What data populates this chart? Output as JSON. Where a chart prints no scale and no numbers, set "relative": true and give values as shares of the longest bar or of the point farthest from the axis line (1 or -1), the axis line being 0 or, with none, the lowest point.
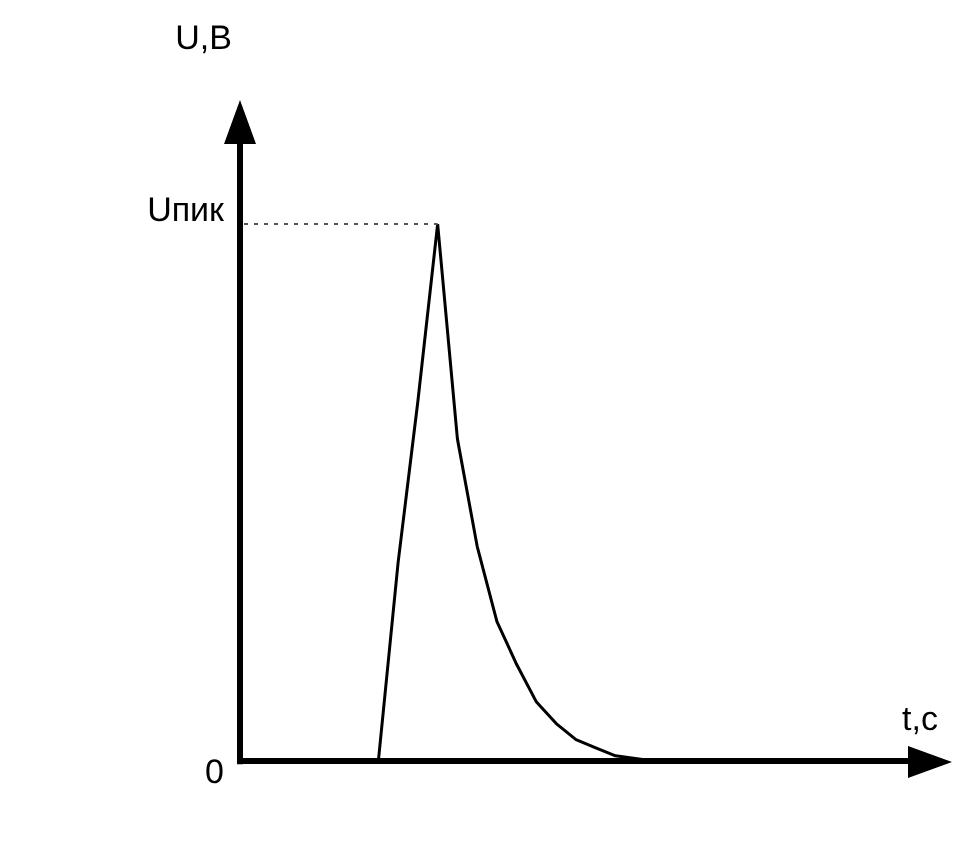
{
  "chart_data": {
    "type": "line",
    "xlabel": "t,c",
    "ylabel": "U,B",
    "relative": true,
    "categories": [
      null,
      null,
      null,
      null,
      null,
      null,
      null,
      null,
      null,
      null,
      null,
      null,
      null,
      null,
      null,
      null,
      null,
      null,
      null,
      null,
      null,
      null,
      null,
      null,
      null,
      null,
      null,
      null,
      null,
      null,
      null,
      null,
      null,
      null,
      null
    ],
    "series": [
      {
        "color": "#000000",
        "values": [
          0,
          0,
          0,
          0,
          0,
          0,
          0,
          0,
          0.37,
          0.67,
          1,
          0.6,
          0.4,
          0.26,
          0.18,
          0.11,
          0.07,
          0.04,
          0.025,
          0.01,
          0.005,
          0,
          0,
          0,
          0,
          0,
          0,
          0,
          0,
          0,
          0,
          0,
          0,
          0,
          0
        ]
      }
    ],
    "annotations": [
      "0"
    ],
    "ref_lines": [
      {
        "axis": "y",
        "value": 1,
        "label": "Uпик",
        "line_style": "dotted",
        "color": "#555555"
      }
    ],
    "grid": false,
    "legend": false,
    "marker": "none",
    "line_style": "solid"
  }
}
